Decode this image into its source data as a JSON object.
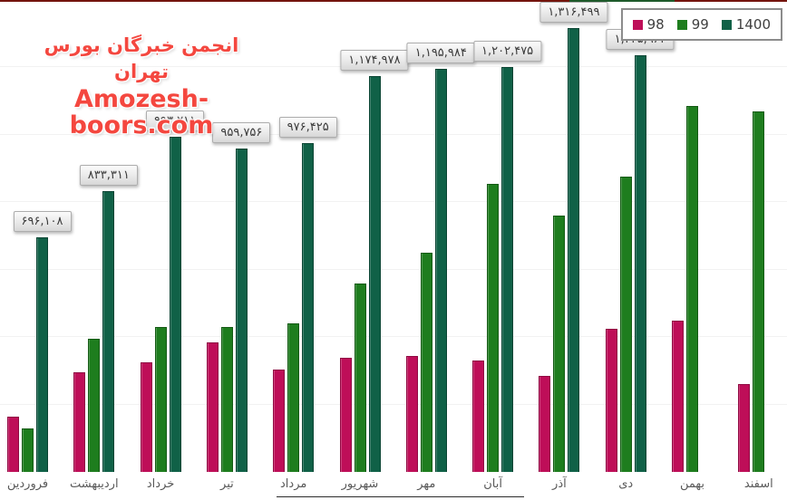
{
  "watermark": {
    "line1": "انجمن خبرگان بورس تهران",
    "line2": "Amozesh-boors.com",
    "color": "#f4473f"
  },
  "chart_data": {
    "type": "bar",
    "title": "",
    "xlabel": "",
    "ylabel": "",
    "ylim": [
      0,
      1400000
    ],
    "grid": true,
    "grid_step": 200000,
    "y_axis_visible": false,
    "legend_position": "top-right",
    "categories": [
      "فروردین",
      "اردیبهشت",
      "خرداد",
      "تیر",
      "مرداد",
      "شهریور",
      "مهر",
      "آبان",
      "آذر",
      "دی",
      "بهمن",
      "اسفند"
    ],
    "series": [
      {
        "name": "98",
        "color": "#be0e58",
        "border_color": "#8f0a42",
        "values": [
          165000,
          295000,
          325000,
          385000,
          305000,
          340000,
          345000,
          330000,
          285000,
          425000,
          450000,
          260000
        ]
      },
      {
        "name": "99",
        "color": "#1e7d1e",
        "border_color": "#145a14",
        "values": [
          130000,
          395000,
          430000,
          430000,
          440000,
          560000,
          650000,
          855000,
          760000,
          875000,
          1085000,
          1070000
        ]
      },
      {
        "name": "1400",
        "color": "#106147",
        "border_color": "#0a4433",
        "values": [
          696108,
          833311,
          993211,
          959756,
          976425,
          1174978,
          1195984,
          1202475,
          1316499,
          1235964,
          null,
          null
        ],
        "data_labels": [
          "۶۹۶,۱۰۸",
          "۸۳۳,۳۱۱",
          "۹۹۳,۲۱۱",
          "۹۵۹,۷۵۶",
          "۹۷۶,۴۲۵",
          "۱,۱۷۴,۹۷۸",
          "۱,۱۹۵,۹۸۴",
          "۱,۲۰۲,۴۷۵",
          "۱,۳۱۶,۴۹۹",
          "۱,۲۳۵,۹۶۴",
          null,
          null
        ]
      }
    ]
  }
}
